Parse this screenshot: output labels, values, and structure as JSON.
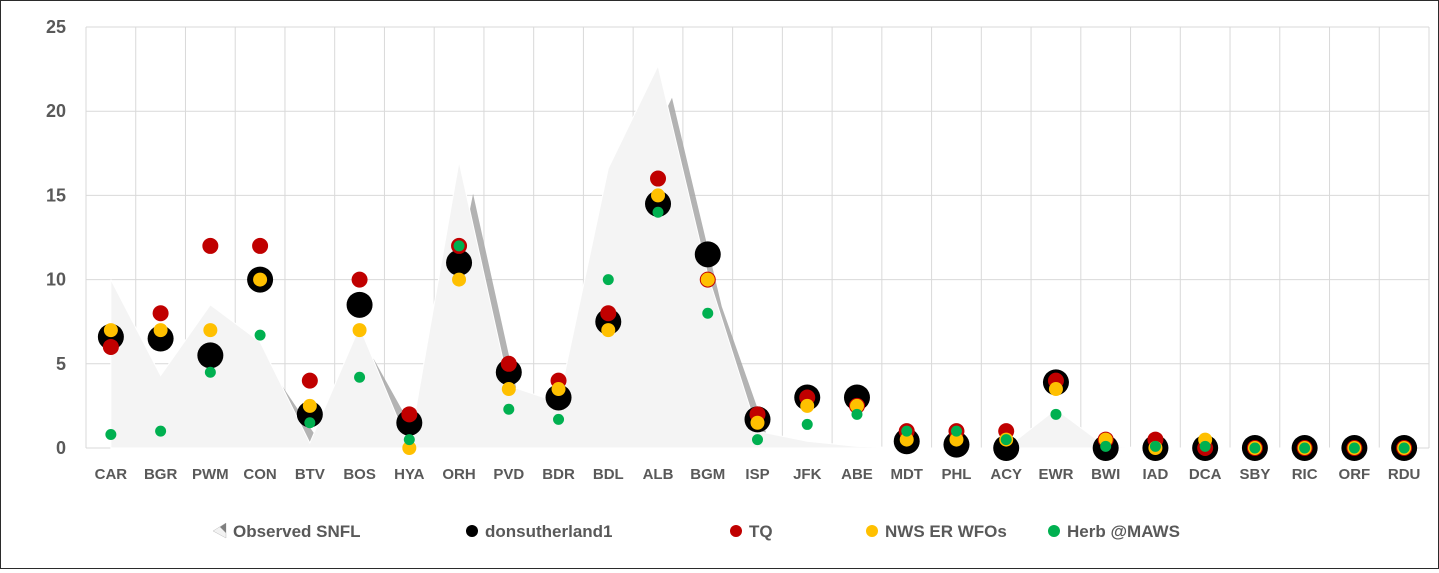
{
  "chart_data": {
    "type": "scatter",
    "title": "",
    "xlabel": "",
    "ylabel": "",
    "ylim": [
      0,
      25
    ],
    "yticks": [
      0,
      5,
      10,
      15,
      20,
      25
    ],
    "grid": true,
    "legend_position": "bottom",
    "categories": [
      "CAR",
      "BGR",
      "PWM",
      "CON",
      "BTV",
      "BOS",
      "HYA",
      "ORH",
      "PVD",
      "BDR",
      "BDL",
      "ALB",
      "BGM",
      "ISP",
      "JFK",
      "ABE",
      "MDT",
      "PHL",
      "ACY",
      "EWR",
      "BWI",
      "IAD",
      "DCA",
      "SBY",
      "RIC",
      "ORF",
      "RDU"
    ],
    "series": [
      {
        "name": "Observed SNFL",
        "kind": "area",
        "color": "#f2f2f2",
        "values": [
          10.0,
          4.3,
          8.5,
          6.3,
          0.3,
          7.2,
          0.1,
          17.0,
          3.7,
          2.7,
          16.6,
          22.7,
          10.3,
          1.0,
          0.4,
          0.1,
          0.0,
          0.0,
          0.0,
          2.3,
          0.1,
          0.0,
          0.0,
          0.0,
          0.0,
          0.0,
          0.0
        ]
      },
      {
        "name": "donsutherland1",
        "kind": "marker",
        "color": "#000000",
        "values": [
          6.6,
          6.5,
          5.5,
          10.0,
          2.0,
          8.5,
          1.5,
          11.0,
          4.5,
          3.0,
          7.5,
          14.5,
          11.5,
          1.7,
          3.0,
          3.0,
          0.4,
          0.2,
          0.0,
          3.9,
          0.0,
          0.0,
          0.0,
          0.0,
          0.0,
          0.0,
          0.0
        ]
      },
      {
        "name": "TQ",
        "kind": "marker",
        "color": "#c00000",
        "values": [
          6.0,
          8.0,
          12.0,
          12.0,
          4.0,
          10.0,
          2.0,
          12.0,
          5.0,
          4.0,
          8.0,
          16.0,
          10.0,
          2.0,
          3.0,
          2.5,
          1.0,
          1.0,
          1.0,
          4.0,
          0.5,
          0.5,
          0.0,
          0.0,
          0.0,
          0.0,
          0.0
        ]
      },
      {
        "name": "NWS ER WFOs",
        "kind": "marker",
        "color": "#ffc000",
        "values": [
          7.0,
          7.0,
          7.0,
          10.0,
          2.5,
          7.0,
          0.0,
          10.0,
          3.5,
          3.5,
          7.0,
          15.0,
          10.0,
          1.5,
          2.5,
          2.5,
          0.5,
          0.5,
          0.5,
          3.5,
          0.5,
          0.0,
          0.5,
          0.0,
          0.0,
          0.0,
          0.0
        ]
      },
      {
        "name": "Herb @MAWS",
        "kind": "marker",
        "color": "#00b050",
        "values": [
          0.8,
          1.0,
          4.5,
          6.7,
          1.5,
          4.2,
          0.5,
          12.0,
          2.3,
          1.7,
          10.0,
          14.0,
          8.0,
          0.5,
          1.4,
          2.0,
          1.0,
          1.0,
          0.5,
          2.0,
          0.1,
          0.1,
          0.1,
          0.0,
          0.0,
          0.0,
          0.0
        ]
      }
    ]
  }
}
